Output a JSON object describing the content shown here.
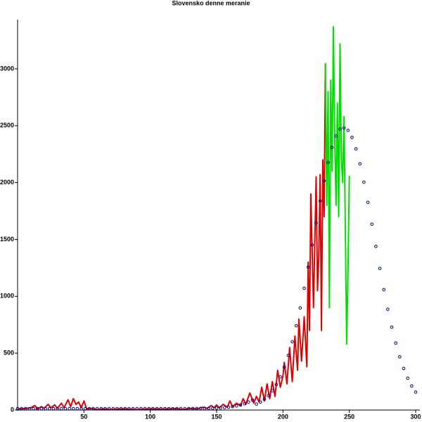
{
  "chart_data": {
    "type": "line",
    "title": "Slovensko denne meranie",
    "xlim": [
      0,
      300
    ],
    "ylim": [
      0,
      3420
    ],
    "xticks": [
      50,
      100,
      150,
      200,
      250,
      300
    ],
    "yticks": [
      0,
      500,
      1000,
      1500,
      2000,
      2500,
      3000
    ],
    "series": [
      {
        "color": "#e00000",
        "mode": "line",
        "x": [
          1,
          5,
          10,
          13,
          15,
          18,
          20,
          23,
          25,
          28,
          30,
          33,
          35,
          38,
          40,
          42,
          44,
          46,
          48,
          50,
          52,
          55,
          60,
          65,
          70,
          80,
          90,
          100,
          110,
          120,
          125,
          130,
          135,
          140,
          143,
          146,
          148,
          150,
          152,
          155,
          158,
          160,
          162,
          165,
          168,
          170,
          172,
          175,
          178,
          180,
          182,
          184,
          186,
          188,
          190,
          192,
          194,
          196,
          198,
          200,
          201,
          203,
          205,
          207,
          209,
          211,
          212,
          214,
          216,
          218,
          219,
          220,
          221,
          223,
          225,
          226,
          227,
          228,
          229,
          230,
          231,
          232
        ],
        "values": [
          10,
          12,
          20,
          40,
          10,
          30,
          15,
          50,
          20,
          45,
          15,
          60,
          20,
          90,
          30,
          100,
          50,
          70,
          20,
          80,
          10,
          15,
          5,
          10,
          5,
          10,
          5,
          10,
          8,
          12,
          5,
          15,
          10,
          25,
          15,
          40,
          20,
          45,
          20,
          50,
          25,
          80,
          30,
          60,
          40,
          100,
          50,
          150,
          60,
          120,
          70,
          200,
          80,
          230,
          100,
          250,
          120,
          350,
          200,
          300,
          420,
          230,
          550,
          250,
          650,
          350,
          800,
          430,
          820,
          380,
          1300,
          700,
          1900,
          900,
          2050,
          1050,
          1350,
          2070,
          700,
          2200,
          1700,
          3050
        ]
      },
      {
        "color": "#00e000",
        "mode": "line",
        "x": [
          232,
          233,
          234,
          235,
          236,
          237,
          238,
          239,
          240,
          241,
          242,
          243,
          244,
          245,
          246,
          247,
          248,
          249,
          250
        ],
        "values": [
          3050,
          1800,
          2800,
          900,
          2900,
          2100,
          3370,
          2400,
          1800,
          2700,
          1700,
          3220,
          2200,
          2000,
          2580,
          1600,
          580,
          1200,
          2060
        ]
      },
      {
        "color": "#000080",
        "mode": "markers",
        "x": [
          0,
          3,
          6,
          9,
          12,
          15,
          18,
          21,
          24,
          27,
          30,
          33,
          36,
          39,
          42,
          45,
          48,
          51,
          54,
          57,
          60,
          63,
          66,
          69,
          72,
          75,
          78,
          81,
          84,
          87,
          90,
          93,
          96,
          99,
          102,
          105,
          108,
          111,
          114,
          117,
          120,
          123,
          126,
          129,
          132,
          135,
          138,
          141,
          144,
          147,
          150,
          153,
          156,
          159,
          162,
          165,
          168,
          171,
          174,
          177,
          180,
          183,
          186,
          189,
          192,
          195,
          198,
          201,
          204,
          207,
          210,
          213,
          216,
          219,
          222,
          225,
          228,
          231,
          234,
          237,
          240,
          243,
          246,
          249,
          252,
          255,
          258,
          261,
          264,
          267,
          270,
          273,
          276,
          279,
          282,
          285,
          288,
          291,
          294,
          297,
          300
        ],
        "values": [
          12,
          12,
          12,
          12,
          12,
          12,
          12,
          12,
          12,
          12,
          12,
          12,
          12,
          12,
          12,
          12,
          12,
          12,
          12,
          12,
          12,
          12,
          12,
          12,
          12,
          12,
          12,
          12,
          12,
          12,
          12,
          12,
          12,
          12,
          12,
          12,
          12,
          12,
          12,
          12,
          12,
          12,
          12,
          12,
          13,
          13,
          14,
          14,
          15,
          16,
          17,
          19,
          22,
          25,
          30,
          36,
          44,
          55,
          70,
          88,
          52,
          70,
          95,
          127,
          170,
          224,
          292,
          378,
          480,
          601,
          741,
          898,
          1071,
          1257,
          1451,
          1646,
          1838,
          2016,
          2177,
          2309,
          2409,
          2471,
          2480,
          2459,
          2397,
          2297,
          2165,
          2004,
          1826,
          1634,
          1439,
          1245,
          1059,
          886,
          729,
          589,
          468,
          366,
          280,
          212,
          158
        ]
      }
    ]
  }
}
